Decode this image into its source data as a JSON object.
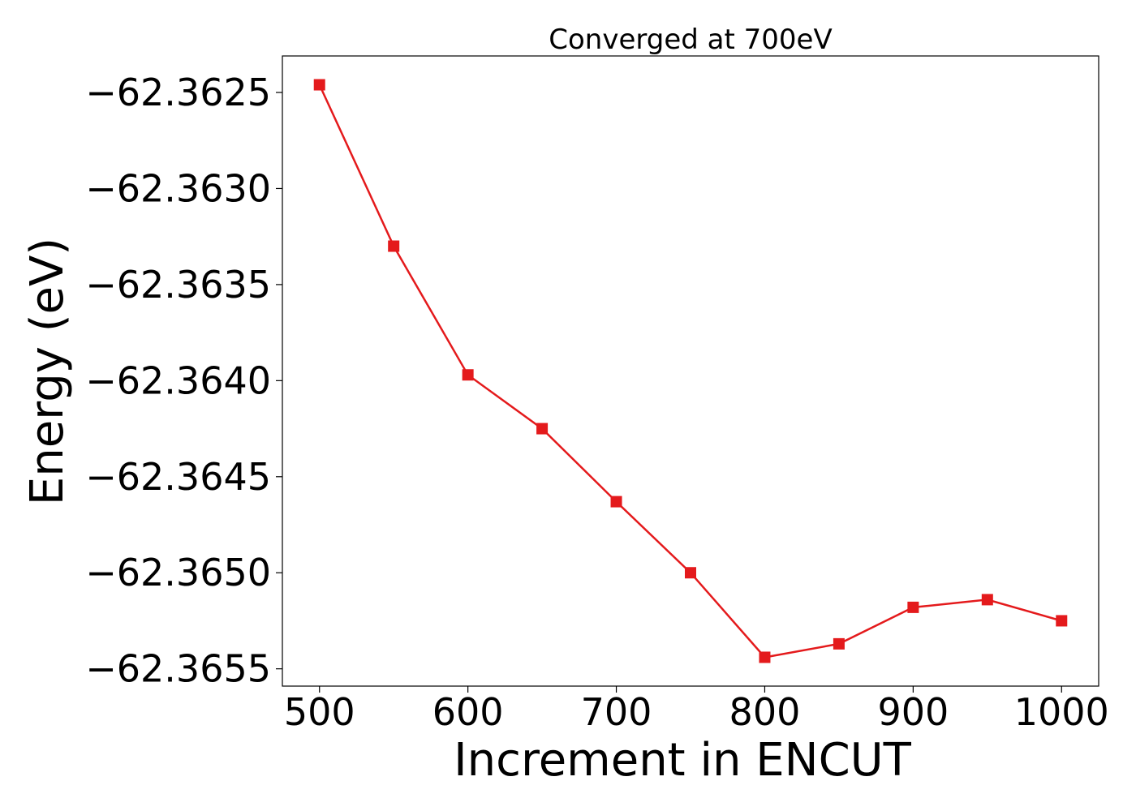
{
  "chart_data": {
    "type": "line",
    "title": "Converged at 700eV",
    "xlabel": "Increment in ENCUT",
    "ylabel": "Energy (eV)",
    "x": [
      500,
      550,
      600,
      650,
      700,
      750,
      800,
      850,
      900,
      950,
      1000
    ],
    "series": [
      {
        "values": [
          -62.36246,
          -62.3633,
          -62.36397,
          -62.36425,
          -62.36463,
          -62.365,
          -62.36544,
          -62.36537,
          -62.36518,
          -62.36514,
          -62.36525
        ],
        "color": "#e41a1c",
        "marker": "square"
      }
    ],
    "xticks": [
      500,
      600,
      700,
      800,
      900,
      1000
    ],
    "xtick_labels": [
      "500",
      "600",
      "700",
      "800",
      "900",
      "1000"
    ],
    "yticks": [
      -62.3625,
      -62.363,
      -62.3635,
      -62.364,
      -62.3645,
      -62.365,
      -62.3655
    ],
    "ytick_labels": [
      "−62.3625",
      "−62.3630",
      "−62.3635",
      "−62.3640",
      "−62.3645",
      "−62.3650",
      "−62.3655"
    ],
    "xlim": [
      475,
      1025
    ],
    "ylim": [
      -62.36559,
      -62.36231
    ],
    "grid": false,
    "legend": "none"
  }
}
